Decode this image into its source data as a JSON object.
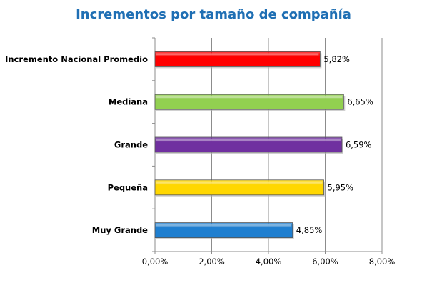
{
  "chart_data": {
    "type": "bar",
    "orientation": "horizontal",
    "title": "Incrementos por tamaño de compañía",
    "categories": [
      "Incremento Nacional Promedio",
      "Mediana",
      "Grande",
      "Pequeña",
      "Muy Grande"
    ],
    "values": [
      5.82,
      6.65,
      6.59,
      5.95,
      4.85
    ],
    "value_labels": [
      "5,82%",
      "6,65%",
      "6,59%",
      "5,95%",
      "4,85%"
    ],
    "colors": [
      "#ff0000",
      "#92d050",
      "#7030a0",
      "#ffd700",
      "#1f7fd0"
    ],
    "xlim": [
      0,
      8
    ],
    "xticks": [
      0,
      2,
      4,
      6,
      8
    ],
    "xtick_labels": [
      "0,00%",
      "2,00%",
      "4,00%",
      "6,00%",
      "8,00%"
    ],
    "grid": true,
    "legend": "none"
  }
}
